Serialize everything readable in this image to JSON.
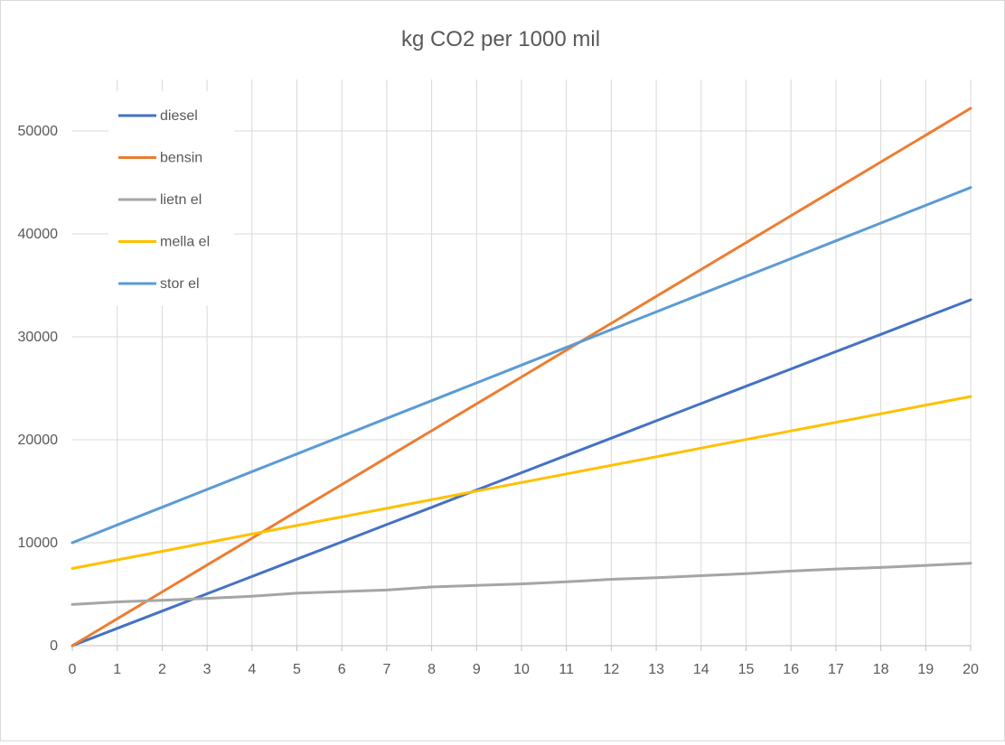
{
  "chart_data": {
    "type": "line",
    "title": "kg CO2 per 1000 mil",
    "xlabel": "",
    "ylabel": "",
    "x": [
      0,
      1,
      2,
      3,
      4,
      5,
      6,
      7,
      8,
      9,
      10,
      11,
      12,
      13,
      14,
      15,
      16,
      17,
      18,
      19,
      20
    ],
    "xlim": [
      0,
      20
    ],
    "ylim": [
      0,
      55000
    ],
    "yticks": [
      0,
      10000,
      20000,
      30000,
      40000,
      50000
    ],
    "grid": true,
    "legend_position": "top-left",
    "series": [
      {
        "name": "diesel",
        "color": "#4472C4",
        "values": [
          0,
          1680,
          3360,
          5040,
          6720,
          8400,
          10080,
          11760,
          13440,
          15120,
          16800,
          18480,
          20160,
          21840,
          23520,
          25200,
          26880,
          28560,
          30240,
          31920,
          33600
        ]
      },
      {
        "name": "bensin",
        "color": "#ED7D31",
        "values": [
          0,
          2610,
          5220,
          7830,
          10440,
          13050,
          15660,
          18270,
          20880,
          23490,
          26100,
          28710,
          31320,
          33930,
          36540,
          39150,
          41760,
          44370,
          46980,
          49590,
          52200
        ]
      },
      {
        "name": "lietn el",
        "color": "#A5A5A5",
        "values": [
          4000,
          4250,
          4400,
          4600,
          4800,
          5100,
          5250,
          5400,
          5700,
          5850,
          6000,
          6200,
          6450,
          6600,
          6800,
          7000,
          7250,
          7450,
          7600,
          7800,
          8000
        ]
      },
      {
        "name": "mella el",
        "color": "#FFC000",
        "values": [
          7500,
          8335,
          9170,
          10005,
          10840,
          11675,
          12510,
          13345,
          14180,
          15015,
          15850,
          16685,
          17520,
          18355,
          19190,
          20025,
          20860,
          21695,
          22530,
          23365,
          24200
        ]
      },
      {
        "name": "stor el",
        "color": "#5B9BD5",
        "values": [
          10000,
          11725,
          13450,
          15175,
          16900,
          18625,
          20350,
          22075,
          23800,
          25525,
          27250,
          28975,
          30700,
          32425,
          34150,
          35875,
          37600,
          39325,
          41050,
          42775,
          44500
        ]
      }
    ]
  }
}
